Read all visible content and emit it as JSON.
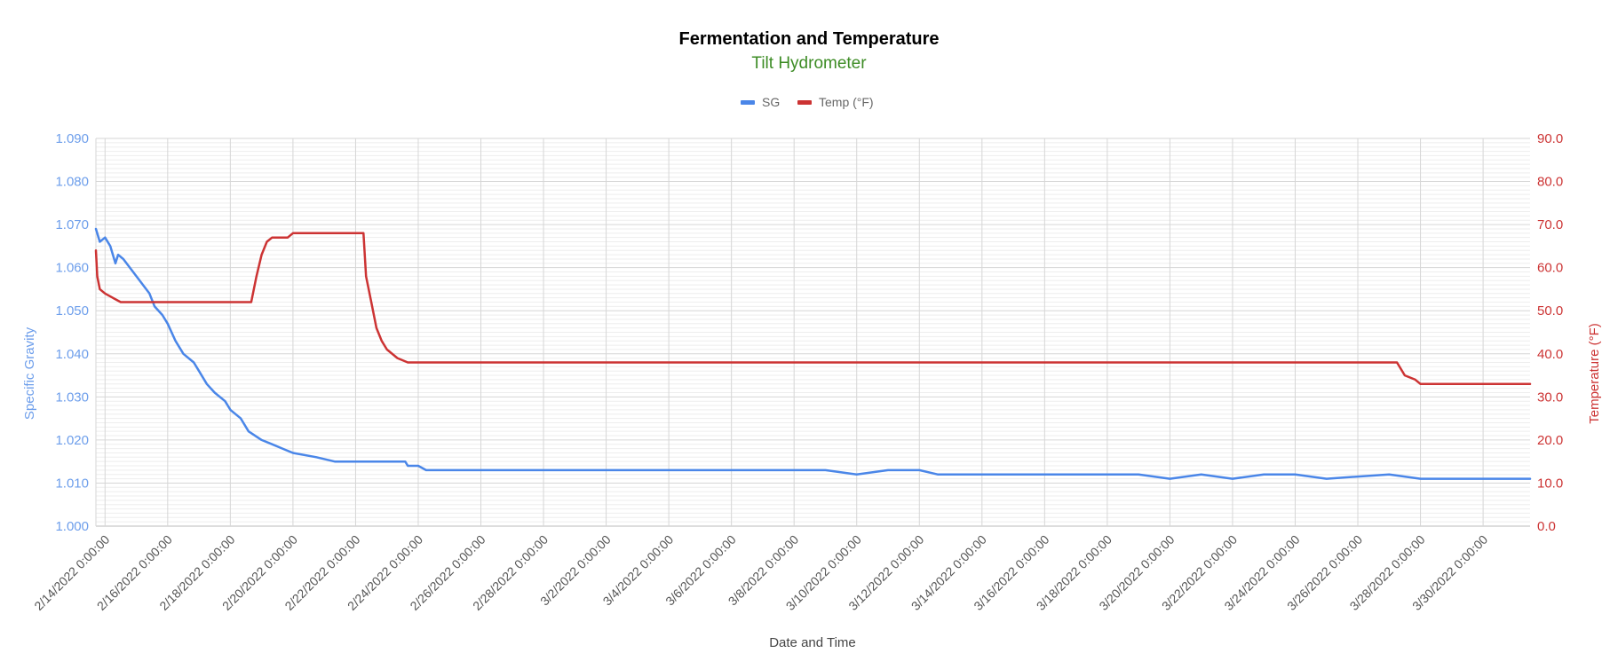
{
  "chart_data": {
    "type": "line",
    "title": "Fermentation and Temperature",
    "subtitle": "Tilt Hydrometer",
    "xlabel": "Date and Time",
    "ylabel_left": "Specific Gravity",
    "ylabel_right": "Temperature (°F)",
    "x_range": [
      "2/13/2022 17:00",
      "3/31/2022 12:00"
    ],
    "x_ticks": [
      "2/14/2022 0:00:00",
      "2/16/2022 0:00:00",
      "2/18/2022 0:00:00",
      "2/20/2022 0:00:00",
      "2/22/2022 0:00:00",
      "2/24/2022 0:00:00",
      "2/26/2022 0:00:00",
      "2/28/2022 0:00:00",
      "3/2/2022 0:00:00",
      "3/4/2022 0:00:00",
      "3/6/2022 0:00:00",
      "3/8/2022 0:00:00",
      "3/10/2022 0:00:00",
      "3/12/2022 0:00:00",
      "3/14/2022 0:00:00",
      "3/16/2022 0:00:00",
      "3/18/2022 0:00:00",
      "3/20/2022 0:00:00",
      "3/22/2022 0:00:00",
      "3/24/2022 0:00:00",
      "3/26/2022 0:00:00",
      "3/28/2022 0:00:00",
      "3/30/2022 0:00:00"
    ],
    "y_left": {
      "min": 1.0,
      "max": 1.09,
      "ticks": [
        "1.000",
        "1.010",
        "1.020",
        "1.030",
        "1.040",
        "1.050",
        "1.060",
        "1.070",
        "1.080",
        "1.090"
      ]
    },
    "y_right": {
      "min": 0,
      "max": 90,
      "ticks": [
        "0.0",
        "10.0",
        "20.0",
        "30.0",
        "40.0",
        "50.0",
        "60.0",
        "70.0",
        "80.0",
        "90.0"
      ]
    },
    "legend_position": "top",
    "grid": true,
    "series": [
      {
        "name": "SG",
        "axis": "left",
        "color": "#4a86e8",
        "points": [
          [
            "2/13/2022 17:00",
            1.069
          ],
          [
            "2/13/2022 20:00",
            1.066
          ],
          [
            "2/14/2022 0:00",
            1.067
          ],
          [
            "2/14/2022 4:00",
            1.065
          ],
          [
            "2/14/2022 8:00",
            1.061
          ],
          [
            "2/14/2022 10:00",
            1.063
          ],
          [
            "2/14/2022 14:00",
            1.062
          ],
          [
            "2/15/2022 0:00",
            1.058
          ],
          [
            "2/15/2022 10:00",
            1.054
          ],
          [
            "2/15/2022 14:00",
            1.051
          ],
          [
            "2/15/2022 20:00",
            1.049
          ],
          [
            "2/16/2022 0:00",
            1.047
          ],
          [
            "2/16/2022 6:00",
            1.043
          ],
          [
            "2/16/2022 12:00",
            1.04
          ],
          [
            "2/16/2022 20:00",
            1.038
          ],
          [
            "2/17/2022 0:00",
            1.036
          ],
          [
            "2/17/2022 6:00",
            1.033
          ],
          [
            "2/17/2022 12:00",
            1.031
          ],
          [
            "2/17/2022 20:00",
            1.029
          ],
          [
            "2/18/2022 0:00",
            1.027
          ],
          [
            "2/18/2022 8:00",
            1.025
          ],
          [
            "2/18/2022 14:00",
            1.022
          ],
          [
            "2/19/2022 0:00",
            1.02
          ],
          [
            "2/19/2022 8:00",
            1.019
          ],
          [
            "2/19/2022 16:00",
            1.018
          ],
          [
            "2/20/2022 0:00",
            1.017
          ],
          [
            "2/20/2022 18:00",
            1.016
          ],
          [
            "2/21/2022 8:00",
            1.015
          ],
          [
            "2/23/2022 14:00",
            1.015
          ],
          [
            "2/23/2022 16:00",
            1.014
          ],
          [
            "2/24/2022 0:00",
            1.014
          ],
          [
            "2/24/2022 6:00",
            1.013
          ],
          [
            "3/9/2022 0:00",
            1.013
          ],
          [
            "3/10/2022 0:00",
            1.012
          ],
          [
            "3/11/2022 0:00",
            1.013
          ],
          [
            "3/12/2022 0:00",
            1.013
          ],
          [
            "3/12/2022 14:00",
            1.012
          ],
          [
            "3/14/2022 0:00",
            1.012
          ],
          [
            "3/15/2022 12:00",
            1.012
          ],
          [
            "3/19/2022 0:00",
            1.012
          ],
          [
            "3/20/2022 0:00",
            1.011
          ],
          [
            "3/21/2022 0:00",
            1.012
          ],
          [
            "3/22/2022 0:00",
            1.011
          ],
          [
            "3/23/2022 0:00",
            1.012
          ],
          [
            "3/24/2022 0:00",
            1.012
          ],
          [
            "3/25/2022 0:00",
            1.011
          ],
          [
            "3/27/2022 0:00",
            1.012
          ],
          [
            "3/28/2022 0:00",
            1.011
          ],
          [
            "3/30/2022 0:00",
            1.011
          ],
          [
            "3/31/2022 12:00",
            1.011
          ]
        ]
      },
      {
        "name": "Temp (°F)",
        "axis": "right",
        "color": "#cc3333",
        "points": [
          [
            "2/13/2022 17:00",
            64
          ],
          [
            "2/13/2022 18:00",
            58
          ],
          [
            "2/13/2022 20:00",
            55
          ],
          [
            "2/14/2022 0:00",
            54
          ],
          [
            "2/14/2022 6:00",
            53
          ],
          [
            "2/14/2022 12:00",
            52
          ],
          [
            "2/18/2022 16:00",
            52
          ],
          [
            "2/18/2022 20:00",
            58
          ],
          [
            "2/19/2022 0:00",
            63
          ],
          [
            "2/19/2022 4:00",
            66
          ],
          [
            "2/19/2022 8:00",
            67
          ],
          [
            "2/19/2022 20:00",
            67
          ],
          [
            "2/20/2022 0:00",
            68
          ],
          [
            "2/22/2022 6:00",
            68
          ],
          [
            "2/22/2022 8:00",
            58
          ],
          [
            "2/22/2022 12:00",
            52
          ],
          [
            "2/22/2022 16:00",
            46
          ],
          [
            "2/22/2022 20:00",
            43
          ],
          [
            "2/23/2022 0:00",
            41
          ],
          [
            "2/23/2022 8:00",
            39
          ],
          [
            "2/23/2022 16:00",
            38
          ],
          [
            "3/27/2022 6:00",
            38
          ],
          [
            "3/27/2022 12:00",
            35
          ],
          [
            "3/27/2022 20:00",
            34
          ],
          [
            "3/28/2022 0:00",
            33
          ],
          [
            "3/31/2022 12:00",
            33
          ]
        ]
      }
    ]
  }
}
